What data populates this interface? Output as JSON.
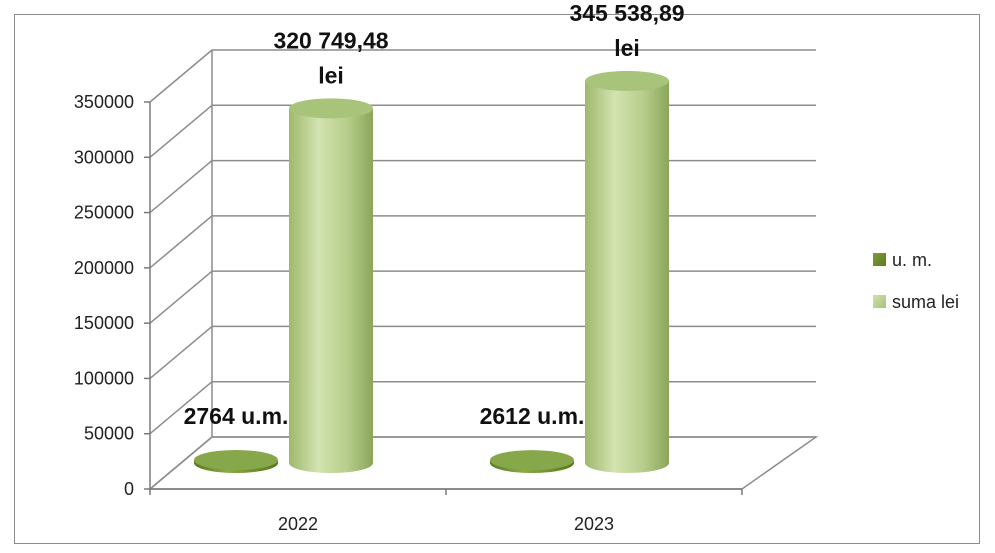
{
  "chart_data": {
    "type": "bar",
    "style": "3d-cylinder",
    "categories": [
      "2022",
      "2023"
    ],
    "series": [
      {
        "name": "u. m.",
        "color": "#6f8f2f",
        "values": [
          2764,
          2612
        ],
        "labels": [
          "2764 u.m.",
          "2612 u.m."
        ]
      },
      {
        "name": "suma lei",
        "color": "#b9d08f",
        "values": [
          320749.48,
          345538.89
        ],
        "labels": [
          [
            "320 749,48",
            "lei"
          ],
          [
            "345 538,89",
            "lei"
          ]
        ]
      }
    ],
    "yticks": [
      "0",
      "50000",
      "100000",
      "150000",
      "200000",
      "250000",
      "300000",
      "350000"
    ],
    "ylim": [
      0,
      350000
    ],
    "grid": true,
    "legend": "right"
  }
}
